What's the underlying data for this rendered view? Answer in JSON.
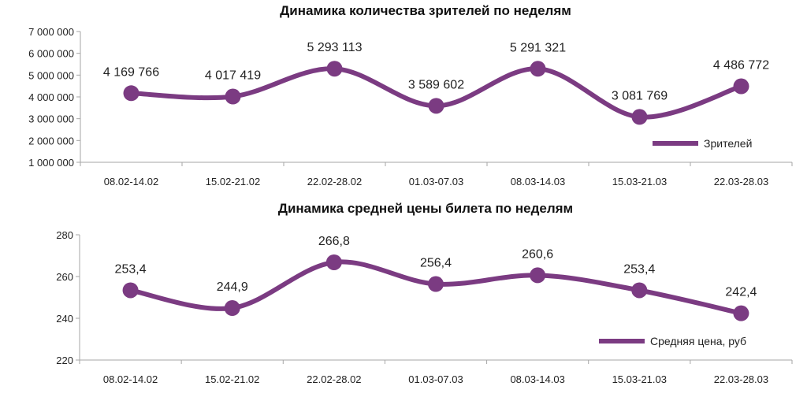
{
  "colors": {
    "series": "#7b3b82",
    "axis": "#a6a6a6",
    "text": "#222222"
  },
  "chart_data": [
    {
      "type": "line",
      "title": "Динамика количества зрителей по неделям",
      "xlabel": "",
      "ylabel": "",
      "categories": [
        "08.02-14.02",
        "15.02-21.02",
        "22.02-28.02",
        "01.03-07.03",
        "08.03-14.03",
        "15.03-21.03",
        "22.03-28.03"
      ],
      "series": [
        {
          "name": "Зрителей",
          "values": [
            4169766,
            4017419,
            5293113,
            3589602,
            5291321,
            3081769,
            4486772
          ],
          "labels": [
            "4 169 766",
            "4 017 419",
            "5 293 113",
            "3 589 602",
            "5 291 321",
            "3 081 769",
            "4 486 772"
          ]
        }
      ],
      "ylim": [
        1000000,
        7000000
      ],
      "yticks": [
        1000000,
        2000000,
        3000000,
        4000000,
        5000000,
        6000000,
        7000000
      ],
      "ytick_labels": [
        "1 000 000",
        "2 000 000",
        "3 000 000",
        "4 000 000",
        "5 000 000",
        "6 000 000",
        "7 000 000"
      ],
      "grid": false,
      "smooth": true,
      "legend_position": "bottom-right"
    },
    {
      "type": "line",
      "title": "Динамика средней цены билета по неделям",
      "xlabel": "",
      "ylabel": "",
      "categories": [
        "08.02-14.02",
        "15.02-21.02",
        "22.02-28.02",
        "01.03-07.03",
        "08.03-14.03",
        "15.03-21.03",
        "22.03-28.03"
      ],
      "series": [
        {
          "name": "Средняя цена, руб",
          "values": [
            253.4,
            244.9,
            266.8,
            256.4,
            260.6,
            253.4,
            242.4
          ],
          "labels": [
            "253,4",
            "244,9",
            "266,8",
            "256,4",
            "260,6",
            "253,4",
            "242,4"
          ]
        }
      ],
      "ylim": [
        220,
        280
      ],
      "yticks": [
        220,
        240,
        260,
        280
      ],
      "ytick_labels": [
        "220",
        "240",
        "260",
        "280"
      ],
      "grid": false,
      "smooth": true,
      "legend_position": "bottom-right"
    }
  ]
}
